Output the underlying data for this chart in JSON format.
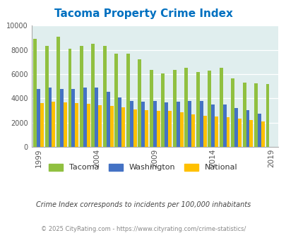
{
  "title": "Tacoma Property Crime Index",
  "title_color": "#0070C0",
  "years": [
    1999,
    2000,
    2001,
    2002,
    2003,
    2004,
    2005,
    2006,
    2007,
    2008,
    2009,
    2010,
    2011,
    2012,
    2013,
    2014,
    2015,
    2016,
    2017,
    2018,
    2019,
    2020
  ],
  "tacoma": [
    8900,
    8350,
    9100,
    8100,
    8350,
    8500,
    8350,
    7700,
    7700,
    7200,
    6350,
    6050,
    6350,
    6550,
    6200,
    6300,
    6550,
    5650,
    5300,
    5250,
    5200,
    0
  ],
  "washington": [
    4800,
    4900,
    4800,
    4800,
    4900,
    4900,
    4550,
    4100,
    3800,
    3700,
    3800,
    3650,
    3750,
    3800,
    3800,
    3500,
    3500,
    3200,
    3000,
    2750,
    0,
    0
  ],
  "national": [
    3600,
    3700,
    3650,
    3600,
    3550,
    3450,
    3350,
    3250,
    3100,
    3000,
    2950,
    2950,
    2850,
    2650,
    2550,
    2500,
    2450,
    2350,
    2200,
    2100,
    0,
    0
  ],
  "tacoma_color": "#90C040",
  "washington_color": "#4472C4",
  "national_color": "#FFC000",
  "bg_color": "#E0EEEE",
  "fig_bg": "#FFFFFF",
  "xlabel_ticks": [
    1999,
    2004,
    2009,
    2014,
    2019
  ],
  "ylim": [
    0,
    10000
  ],
  "yticks": [
    0,
    2000,
    4000,
    6000,
    8000,
    10000
  ],
  "note": "Crime Index corresponds to incidents per 100,000 inhabitants",
  "footer": "© 2025 CityRating.com - https://www.cityrating.com/crime-statistics/",
  "note_color": "#444444",
  "footer_color": "#888888"
}
